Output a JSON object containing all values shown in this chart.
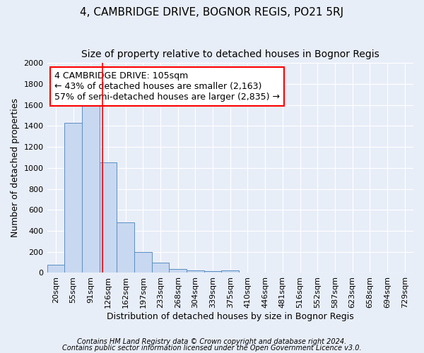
{
  "title": "4, CAMBRIDGE DRIVE, BOGNOR REGIS, PO21 5RJ",
  "subtitle": "Size of property relative to detached houses in Bognor Regis",
  "xlabel": "Distribution of detached houses by size in Bognor Regis",
  "ylabel": "Number of detached properties",
  "categories": [
    "20sqm",
    "55sqm",
    "91sqm",
    "126sqm",
    "162sqm",
    "197sqm",
    "233sqm",
    "268sqm",
    "304sqm",
    "339sqm",
    "375sqm",
    "410sqm",
    "446sqm",
    "481sqm",
    "516sqm",
    "552sqm",
    "587sqm",
    "623sqm",
    "658sqm",
    "694sqm",
    "729sqm"
  ],
  "bar_heights": [
    80,
    1430,
    1620,
    1050,
    480,
    200,
    100,
    40,
    25,
    15,
    20,
    0,
    0,
    0,
    0,
    0,
    0,
    0,
    0,
    0,
    0
  ],
  "bar_color": "#c8d8f0",
  "bar_edge_color": "#5b8ec4",
  "background_color": "#e8eef8",
  "grid_color": "#ffffff",
  "vline_x": 2.67,
  "vline_color": "red",
  "annotation_text": "4 CAMBRIDGE DRIVE: 105sqm\n← 43% of detached houses are smaller (2,163)\n57% of semi-detached houses are larger (2,835) →",
  "annotation_box_color": "white",
  "annotation_box_edge": "red",
  "ylim": [
    0,
    2000
  ],
  "yticks": [
    0,
    200,
    400,
    600,
    800,
    1000,
    1200,
    1400,
    1600,
    1800,
    2000
  ],
  "footer1": "Contains HM Land Registry data © Crown copyright and database right 2024.",
  "footer2": "Contains public sector information licensed under the Open Government Licence v3.0.",
  "title_fontsize": 11,
  "subtitle_fontsize": 10,
  "label_fontsize": 9,
  "tick_fontsize": 8,
  "footer_fontsize": 7,
  "annot_fontsize": 9
}
